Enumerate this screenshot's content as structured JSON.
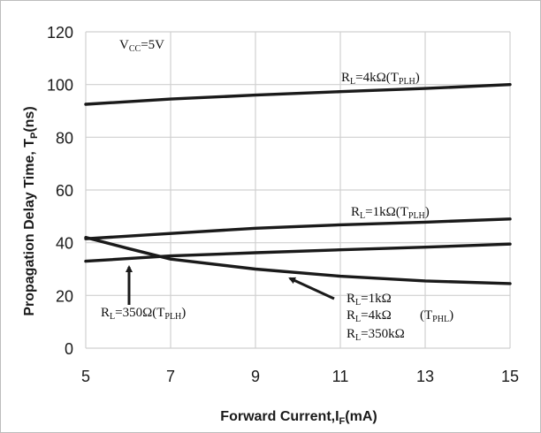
{
  "chart_data": {
    "type": "line",
    "xlabel": "Forward Current,I",
    "xlabel_sub": "F",
    "xlabel_unit": "(mA)",
    "ylabel": "Propagation Delay Time, T",
    "ylabel_sub": "P",
    "ylabel_unit": "(ns)",
    "xlim": [
      5,
      15
    ],
    "ylim": [
      0,
      120
    ],
    "xticks": [
      5,
      7,
      9,
      11,
      13,
      15
    ],
    "yticks": [
      0,
      20,
      40,
      60,
      80,
      100,
      120
    ],
    "grid": true,
    "series": [
      {
        "x": [
          5,
          7,
          9,
          11,
          13,
          15
        ],
        "y": [
          92.5,
          94.5,
          96,
          97.3,
          98.5,
          100
        ]
      },
      {
        "x": [
          5,
          7,
          9,
          11,
          13,
          15
        ],
        "y": [
          41.5,
          43.5,
          45.5,
          46.8,
          47.8,
          49
        ]
      },
      {
        "x": [
          5,
          7,
          9,
          11,
          13,
          15
        ],
        "y": [
          33,
          35,
          36.2,
          37.3,
          38.3,
          39.5
        ]
      },
      {
        "x": [
          5,
          6,
          7,
          9,
          11,
          13,
          15
        ],
        "y": [
          42,
          37.8,
          33.8,
          30,
          27.3,
          25.5,
          24.5
        ]
      }
    ]
  },
  "annotations": {
    "vcc": {
      "main": "V",
      "sub": "CC",
      "tail": "=5V"
    },
    "rl4k": {
      "main": "R",
      "sub": "L",
      "mid": "=4kΩ(T",
      "sub2": "PLH",
      "tail": ")"
    },
    "rl1k": {
      "main": "R",
      "sub": "L",
      "mid": "=1kΩ(T",
      "sub2": "PLH",
      "tail": ")"
    },
    "rl350": {
      "main": "R",
      "sub": "L",
      "mid": "=350Ω(T",
      "sub2": "PLH",
      "tail": ")"
    },
    "phl_line1": {
      "main": "R",
      "sub": "L",
      "tail": "=1kΩ"
    },
    "phl_line2": {
      "main": "R",
      "sub": "L",
      "tail": "=4kΩ"
    },
    "phl_tag": {
      "open": "(T",
      "sub": "PHL",
      "close": ")"
    },
    "phl_line3": {
      "main": "R",
      "sub": "L",
      "tail": "=350kΩ"
    }
  }
}
